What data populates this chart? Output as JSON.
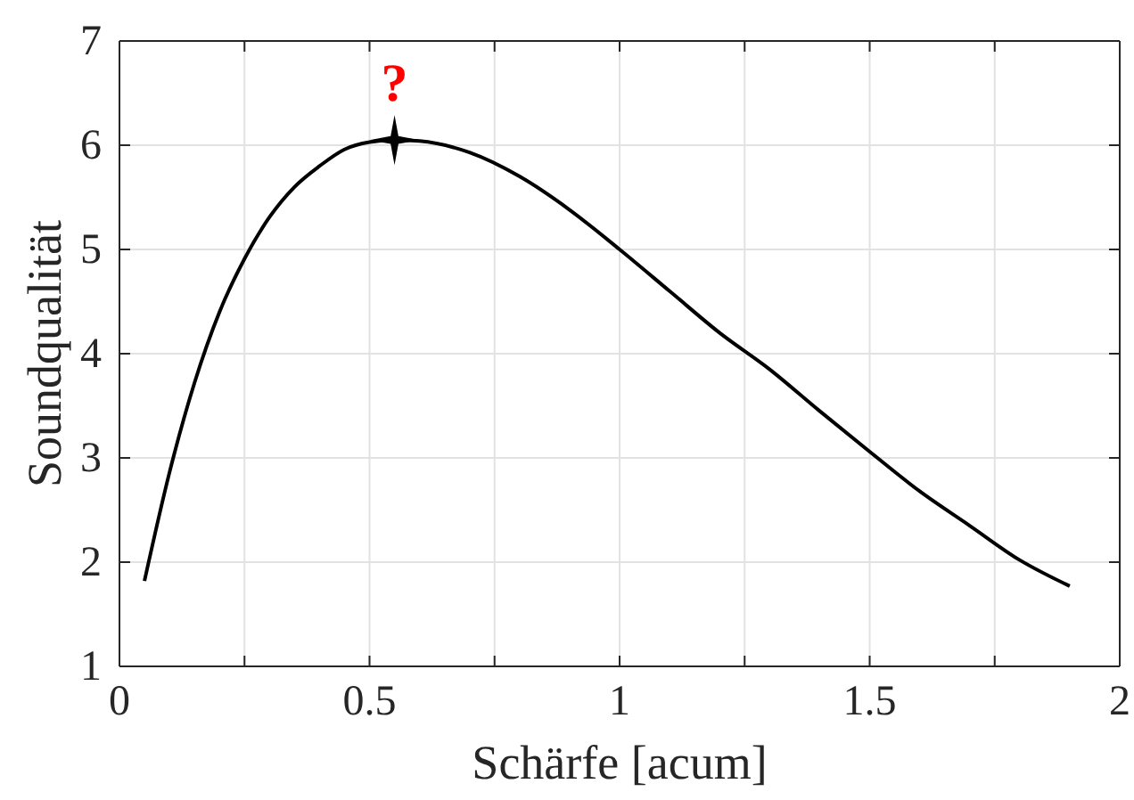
{
  "chart_data": {
    "type": "line",
    "xlabel": "Schärfe [acum]",
    "ylabel": "Soundqualität",
    "xlim": [
      0,
      2
    ],
    "ylim": [
      1,
      7
    ],
    "xticks": [
      0,
      {
        "value": 0.25,
        "label": null
      },
      0.5,
      {
        "value": 0.75,
        "label": null
      },
      1,
      {
        "value": 1.25,
        "label": null
      },
      1.5,
      {
        "value": 1.75,
        "label": null
      },
      2
    ],
    "yticks": [
      1,
      2,
      3,
      4,
      5,
      6,
      7
    ],
    "grid": true,
    "series": [
      {
        "color": "#000000",
        "x": [
          0.05,
          0.1,
          0.15,
          0.2,
          0.25,
          0.3,
          0.35,
          0.4,
          0.45,
          0.5,
          0.55,
          0.6,
          0.7,
          0.8,
          0.9,
          1.0,
          1.1,
          1.2,
          1.3,
          1.4,
          1.5,
          1.6,
          1.7,
          1.8,
          1.9
        ],
        "values": [
          1.82,
          2.86,
          3.72,
          4.4,
          4.91,
          5.31,
          5.6,
          5.8,
          5.96,
          6.03,
          6.05,
          6.04,
          5.93,
          5.7,
          5.38,
          5.0,
          4.6,
          4.2,
          3.85,
          3.45,
          3.06,
          2.68,
          2.35,
          2.02,
          1.77
        ]
      },
      {
        "type": "scatter",
        "color": "#000000",
        "marker": "star",
        "x": [
          0.55
        ],
        "values": [
          6.05
        ]
      }
    ],
    "annotations": [
      {
        "text": "?",
        "x": 0.55,
        "y": 6.05
      }
    ]
  }
}
